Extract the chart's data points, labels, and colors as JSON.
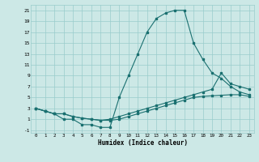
{
  "xlabel": "Humidex (Indice chaleur)",
  "bg_color": "#cce8e6",
  "grid_color": "#99cccc",
  "line_color": "#1a7070",
  "xlim": [
    -0.5,
    23.5
  ],
  "ylim": [
    -1.5,
    22
  ],
  "xticks": [
    0,
    1,
    2,
    3,
    4,
    5,
    6,
    7,
    8,
    9,
    10,
    11,
    12,
    13,
    14,
    15,
    16,
    17,
    18,
    19,
    20,
    21,
    22,
    23
  ],
  "yticks": [
    -1,
    1,
    3,
    5,
    7,
    9,
    11,
    13,
    15,
    17,
    19,
    21
  ],
  "curve1_x": [
    0,
    1,
    2,
    3,
    4,
    5,
    6,
    7,
    8,
    9,
    10,
    11,
    12,
    13,
    14,
    15,
    16,
    17,
    18,
    19,
    20,
    21,
    22,
    23
  ],
  "curve1_y": [
    3,
    2.5,
    2,
    1,
    1,
    0,
    0,
    -0.5,
    -0.5,
    5,
    9,
    13,
    17,
    19.5,
    20.5,
    21,
    21,
    15,
    12,
    9.5,
    8.5,
    7,
    6,
    5.5
  ],
  "curve2_x": [
    0,
    1,
    2,
    3,
    4,
    5,
    6,
    7,
    8,
    9,
    10,
    11,
    12,
    13,
    14,
    15,
    16,
    17,
    18,
    19,
    20,
    21,
    22,
    23
  ],
  "curve2_y": [
    3,
    2.5,
    2,
    2,
    1.5,
    1.2,
    1,
    0.8,
    1,
    1.5,
    2,
    2.5,
    3,
    3.5,
    4,
    4.5,
    5,
    5.5,
    6,
    6.5,
    9.5,
    7.5,
    7,
    6.5
  ],
  "curve3_x": [
    0,
    1,
    2,
    3,
    4,
    5,
    6,
    7,
    8,
    9,
    10,
    11,
    12,
    13,
    14,
    15,
    16,
    17,
    18,
    19,
    20,
    21,
    22,
    23
  ],
  "curve3_y": [
    3,
    2.5,
    2,
    2,
    1.5,
    1.2,
    1,
    0.8,
    0.8,
    1,
    1.5,
    2,
    2.5,
    3,
    3.5,
    4,
    4.5,
    5,
    5.2,
    5.3,
    5.4,
    5.5,
    5.5,
    5.2
  ],
  "figsize": [
    3.2,
    2.0
  ],
  "dpi": 100
}
